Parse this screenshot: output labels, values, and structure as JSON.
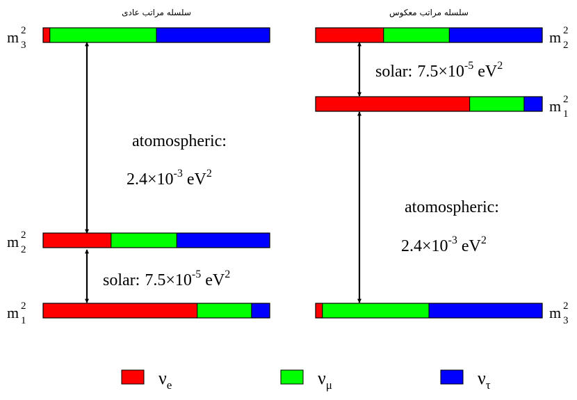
{
  "colors": {
    "nu_e": "#ff0000",
    "nu_mu": "#00ff00",
    "nu_tau": "#0000ff",
    "stroke": "#000000"
  },
  "normal": {
    "title": "سلسله مراتب عادی",
    "levels": [
      {
        "id": "m3",
        "label": "m",
        "sub": "3",
        "sup": "2",
        "fractions": [
          0.03,
          0.47,
          0.5
        ]
      },
      {
        "id": "m2",
        "label": "m",
        "sub": "2",
        "sup": "2",
        "fractions": [
          0.3,
          0.29,
          0.41
        ]
      },
      {
        "id": "m1",
        "label": "m",
        "sub": "1",
        "sup": "2",
        "fractions": [
          0.68,
          0.24,
          0.08
        ]
      }
    ],
    "atmospheric": {
      "label": "atomospheric:",
      "mantissa": "2.4×10",
      "exponent": "-3",
      "unit": "eV",
      "unit_exp": "2"
    },
    "solar": {
      "label": "solar:",
      "mantissa": "7.5×10",
      "exponent": "-5",
      "unit": "eV",
      "unit_exp": "2"
    }
  },
  "inverted": {
    "title": "سلسله مراتب معکوس",
    "levels": [
      {
        "id": "m2",
        "label": "m",
        "sub": "2",
        "sup": "2",
        "fractions": [
          0.3,
          0.29,
          0.41
        ]
      },
      {
        "id": "m1",
        "label": "m",
        "sub": "1",
        "sup": "2",
        "fractions": [
          0.68,
          0.24,
          0.08
        ]
      },
      {
        "id": "m3",
        "label": "m",
        "sub": "3",
        "sup": "2",
        "fractions": [
          0.03,
          0.47,
          0.5
        ]
      }
    ],
    "atmospheric": {
      "label": "atomospheric:",
      "mantissa": "2.4×10",
      "exponent": "-3",
      "unit": "eV",
      "unit_exp": "2"
    },
    "solar": {
      "label": "solar:",
      "mantissa": "7.5×10",
      "exponent": "-5",
      "unit": "eV",
      "unit_exp": "2"
    }
  },
  "legend": [
    {
      "id": "nu_e",
      "symbol": "ν",
      "sub": "e"
    },
    {
      "id": "nu_mu",
      "symbol": "ν",
      "sub": "μ"
    },
    {
      "id": "nu_tau",
      "symbol": "ν",
      "sub": "τ"
    }
  ]
}
